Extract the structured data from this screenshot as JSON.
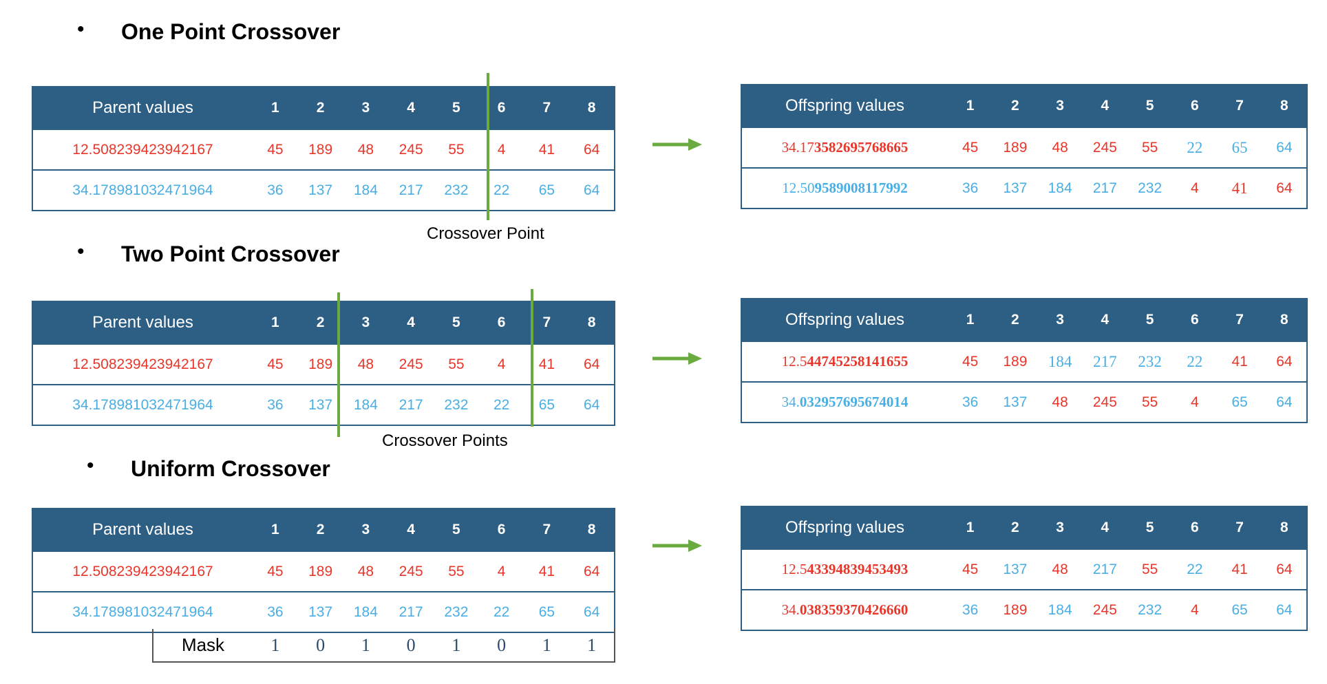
{
  "sections": [
    {
      "title": "One Point Crossover",
      "bullet": "•",
      "parent": {
        "header_label": "Parent values",
        "columns": [
          "1",
          "2",
          "3",
          "4",
          "5",
          "6",
          "7",
          "8"
        ],
        "rows": [
          {
            "label": "12.508239423942167",
            "label_color": "red",
            "cells": [
              {
                "v": "45",
                "c": "red"
              },
              {
                "v": "189",
                "c": "red"
              },
              {
                "v": "48",
                "c": "red"
              },
              {
                "v": "245",
                "c": "red"
              },
              {
                "v": "55",
                "c": "red"
              },
              {
                "v": "4",
                "c": "red"
              },
              {
                "v": "41",
                "c": "red"
              },
              {
                "v": "64",
                "c": "red"
              }
            ]
          },
          {
            "label": "34.178981032471964",
            "label_color": "blue",
            "cells": [
              {
                "v": "36",
                "c": "blue"
              },
              {
                "v": "137",
                "c": "blue"
              },
              {
                "v": "184",
                "c": "blue"
              },
              {
                "v": "217",
                "c": "blue"
              },
              {
                "v": "232",
                "c": "blue"
              },
              {
                "v": "22",
                "c": "blue"
              },
              {
                "v": "65",
                "c": "blue"
              },
              {
                "v": "64",
                "c": "blue"
              }
            ]
          }
        ]
      },
      "crossover_label": "Crossover Point",
      "offspring": {
        "header_label": "Offspring values",
        "columns": [
          "1",
          "2",
          "3",
          "4",
          "5",
          "6",
          "7",
          "8"
        ],
        "rows": [
          {
            "label_prefix": "34.17",
            "label_rest": "3582695768665",
            "label_color": "red",
            "cells": [
              {
                "v": "45",
                "c": "red"
              },
              {
                "v": "189",
                "c": "red"
              },
              {
                "v": "48",
                "c": "red"
              },
              {
                "v": "245",
                "c": "red"
              },
              {
                "v": "55",
                "c": "red"
              },
              {
                "v": "22",
                "c": "blue",
                "serif": true
              },
              {
                "v": "65",
                "c": "blue",
                "serif": true
              },
              {
                "v": "64",
                "c": "blue"
              }
            ]
          },
          {
            "label_prefix": "12.50",
            "label_rest": "9589008117992",
            "label_color": "blue",
            "cells": [
              {
                "v": "36",
                "c": "blue"
              },
              {
                "v": "137",
                "c": "blue"
              },
              {
                "v": "184",
                "c": "blue"
              },
              {
                "v": "217",
                "c": "blue"
              },
              {
                "v": "232",
                "c": "blue"
              },
              {
                "v": "4",
                "c": "red"
              },
              {
                "v": "41",
                "c": "red",
                "serif": true
              },
              {
                "v": "64",
                "c": "red"
              }
            ]
          }
        ]
      }
    },
    {
      "title": "Two Point Crossover",
      "bullet": "•",
      "parent": {
        "header_label": "Parent values",
        "columns": [
          "1",
          "2",
          "3",
          "4",
          "5",
          "6",
          "7",
          "8"
        ],
        "rows": [
          {
            "label": "12.508239423942167",
            "label_color": "red",
            "cells": [
              {
                "v": "45",
                "c": "red"
              },
              {
                "v": "189",
                "c": "red"
              },
              {
                "v": "48",
                "c": "red"
              },
              {
                "v": "245",
                "c": "red"
              },
              {
                "v": "55",
                "c": "red"
              },
              {
                "v": "4",
                "c": "red"
              },
              {
                "v": "41",
                "c": "red"
              },
              {
                "v": "64",
                "c": "red"
              }
            ]
          },
          {
            "label": "34.178981032471964",
            "label_color": "blue",
            "cells": [
              {
                "v": "36",
                "c": "blue"
              },
              {
                "v": "137",
                "c": "blue"
              },
              {
                "v": "184",
                "c": "blue"
              },
              {
                "v": "217",
                "c": "blue"
              },
              {
                "v": "232",
                "c": "blue"
              },
              {
                "v": "22",
                "c": "blue"
              },
              {
                "v": "65",
                "c": "blue"
              },
              {
                "v": "64",
                "c": "blue"
              }
            ]
          }
        ]
      },
      "crossover_label": "Crossover Points",
      "offspring": {
        "header_label": "Offspring values",
        "columns": [
          "1",
          "2",
          "3",
          "4",
          "5",
          "6",
          "7",
          "8"
        ],
        "rows": [
          {
            "label_prefix": "12.5",
            "label_rest": "44745258141655",
            "label_color": "red",
            "cells": [
              {
                "v": "45",
                "c": "red"
              },
              {
                "v": "189",
                "c": "red"
              },
              {
                "v": "184",
                "c": "blue",
                "serif": true
              },
              {
                "v": "217",
                "c": "blue",
                "serif": true
              },
              {
                "v": "232",
                "c": "blue",
                "serif": true
              },
              {
                "v": "22",
                "c": "blue",
                "serif": true
              },
              {
                "v": "41",
                "c": "red"
              },
              {
                "v": "64",
                "c": "red"
              }
            ]
          },
          {
            "label_prefix": "34.",
            "label_rest": "032957695674014",
            "label_color": "blue",
            "cells": [
              {
                "v": "36",
                "c": "blue"
              },
              {
                "v": "137",
                "c": "blue"
              },
              {
                "v": "48",
                "c": "red"
              },
              {
                "v": "245",
                "c": "red"
              },
              {
                "v": "55",
                "c": "red"
              },
              {
                "v": "4",
                "c": "red"
              },
              {
                "v": "65",
                "c": "blue"
              },
              {
                "v": "64",
                "c": "blue"
              }
            ]
          }
        ]
      }
    },
    {
      "title": "Uniform Crossover",
      "bullet": "•",
      "parent": {
        "header_label": "Parent values",
        "columns": [
          "1",
          "2",
          "3",
          "4",
          "5",
          "6",
          "7",
          "8"
        ],
        "rows": [
          {
            "label": "12.508239423942167",
            "label_color": "red",
            "cells": [
              {
                "v": "45",
                "c": "red"
              },
              {
                "v": "189",
                "c": "red"
              },
              {
                "v": "48",
                "c": "red"
              },
              {
                "v": "245",
                "c": "red"
              },
              {
                "v": "55",
                "c": "red"
              },
              {
                "v": "4",
                "c": "red"
              },
              {
                "v": "41",
                "c": "red"
              },
              {
                "v": "64",
                "c": "red"
              }
            ]
          },
          {
            "label": "34.178981032471964",
            "label_color": "blue",
            "cells": [
              {
                "v": "36",
                "c": "blue"
              },
              {
                "v": "137",
                "c": "blue"
              },
              {
                "v": "184",
                "c": "blue"
              },
              {
                "v": "217",
                "c": "blue"
              },
              {
                "v": "232",
                "c": "blue"
              },
              {
                "v": "22",
                "c": "blue"
              },
              {
                "v": "65",
                "c": "blue"
              },
              {
                "v": "64",
                "c": "blue"
              }
            ]
          }
        ]
      },
      "mask": {
        "label": "Mask",
        "values": [
          "1",
          "0",
          "1",
          "0",
          "1",
          "0",
          "1",
          "1"
        ]
      },
      "offspring": {
        "header_label": "Offspring values",
        "columns": [
          "1",
          "2",
          "3",
          "4",
          "5",
          "6",
          "7",
          "8"
        ],
        "rows": [
          {
            "label_prefix": "12.5",
            "label_rest": "43394839453493",
            "label_color": "red",
            "cells": [
              {
                "v": "45",
                "c": "red"
              },
              {
                "v": "137",
                "c": "blue"
              },
              {
                "v": "48",
                "c": "red"
              },
              {
                "v": "217",
                "c": "blue"
              },
              {
                "v": "55",
                "c": "red"
              },
              {
                "v": "22",
                "c": "blue"
              },
              {
                "v": "41",
                "c": "red"
              },
              {
                "v": "64",
                "c": "red"
              }
            ]
          },
          {
            "label_prefix": "34.",
            "label_rest": "038359370426660",
            "label_color": "red",
            "cells": [
              {
                "v": "36",
                "c": "blue"
              },
              {
                "v": "189",
                "c": "red"
              },
              {
                "v": "184",
                "c": "blue"
              },
              {
                "v": "245",
                "c": "red"
              },
              {
                "v": "232",
                "c": "blue"
              },
              {
                "v": "4",
                "c": "red"
              },
              {
                "v": "65",
                "c": "blue"
              },
              {
                "v": "64",
                "c": "blue"
              }
            ]
          }
        ]
      }
    }
  ],
  "colors": {
    "header_bg": "#2d5e84",
    "red": "#e8362a",
    "blue": "#49aee4",
    "crossover_line": "#6aaa3e",
    "arrow": "#6aaa3e"
  },
  "icons": {
    "arrow": "right-arrow-icon",
    "bullet": "bullet-icon"
  }
}
